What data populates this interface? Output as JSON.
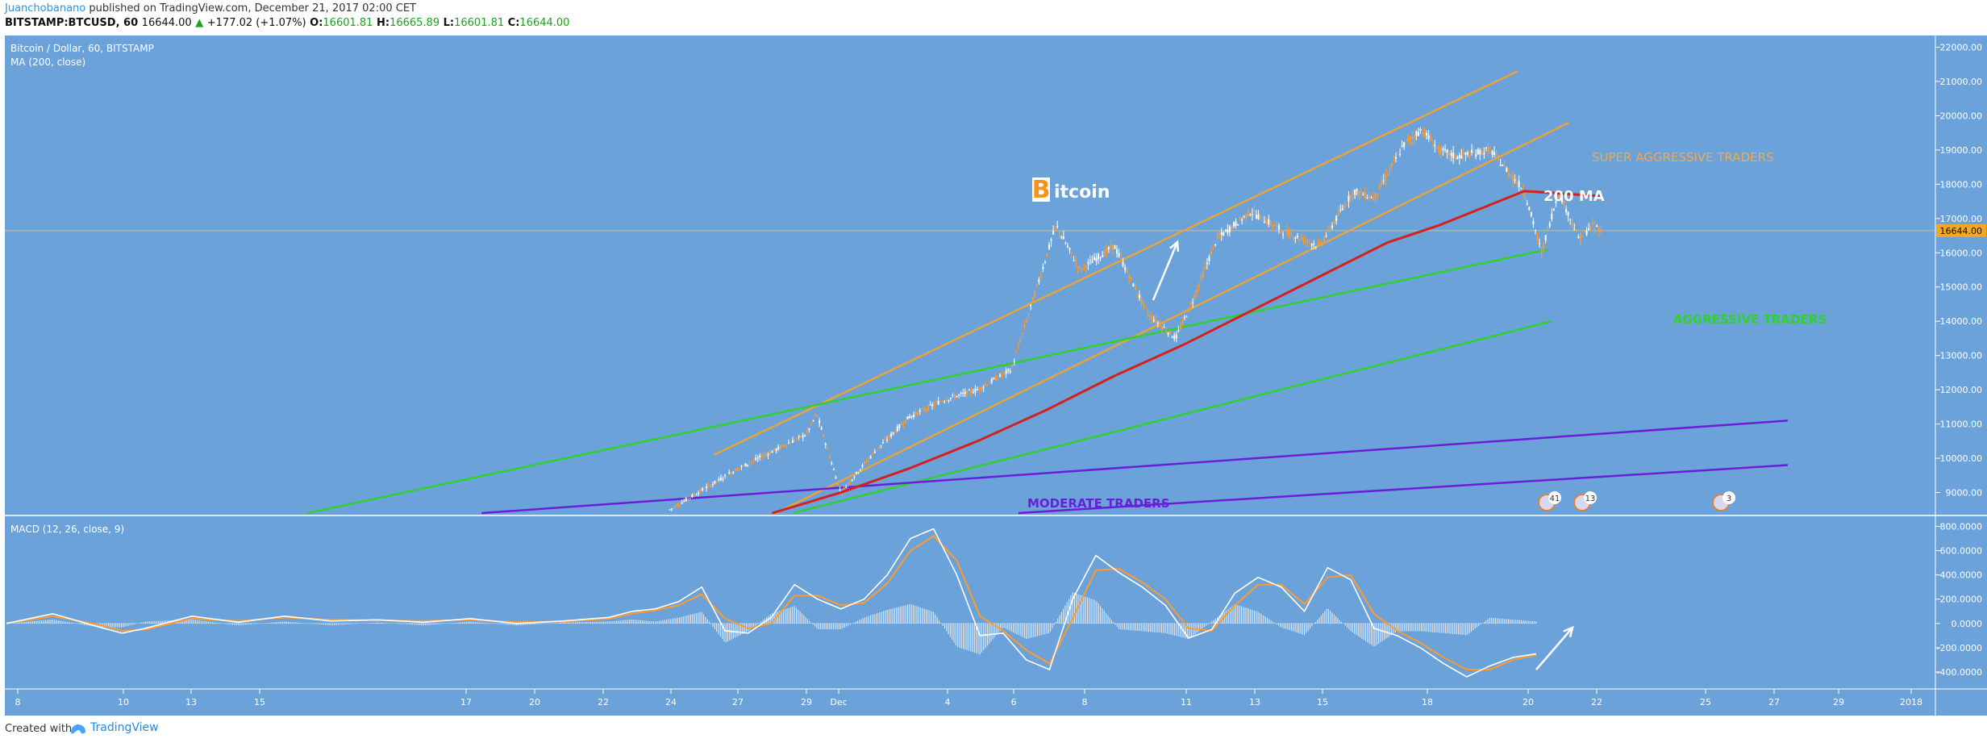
{
  "header": {
    "author": "Juanchobanano",
    "published_on": "published on TradingView.com, December 21, 2017 02:00 CET",
    "symbol": "BITSTAMP:BTCUSD, 60",
    "last": "16644.00",
    "change": "+177.02 (+1.07%)",
    "o_label": "O:",
    "o": "16601.81",
    "h_label": "H:",
    "h": "16665.89",
    "l_label": "L:",
    "l": "16601.81",
    "c_label": "C:",
    "c": "16644.00"
  },
  "footer": {
    "created_with": "Created with",
    "brand": "TradingView"
  },
  "colors": {
    "background": "#6ba2da",
    "candle_up": "#ffffff",
    "candle_down": "#ff9a2e",
    "ma": "#d62020",
    "channel": "#e8a33a",
    "support": "#2ed12e",
    "moderate": "#6a1ed8",
    "macd_line": "#ffffff",
    "signal_line": "#ff9a2e"
  },
  "chart_data": [
    {
      "type": "line",
      "title": "Bitcoin / Dollar, 60, BITSTAMP",
      "subtitle": "MA (200, close)",
      "x_tick_labels": [
        "8",
        "10",
        "13",
        "15",
        "17",
        "20",
        "22",
        "24",
        "27",
        "29",
        "Dec",
        "4",
        "6",
        "8",
        "11",
        "13",
        "15",
        "18",
        "20",
        "22",
        "25",
        "27",
        "29",
        "2018"
      ],
      "y_tick_labels": [
        "9000.00",
        "10000.00",
        "11000.00",
        "12000.00",
        "13000.00",
        "14000.00",
        "15000.00",
        "16000.00",
        "17000.00",
        "18000.00",
        "19000.00",
        "20000.00",
        "21000.00",
        "22000.00"
      ],
      "ylim": [
        8400,
        22200
      ],
      "last_price_label": "16644.00",
      "series": [
        {
          "name": "BTCUSD",
          "kind": "candles",
          "keypoints": [
            [
              26,
              8500
            ],
            [
              28,
              9700
            ],
            [
              30,
              10700
            ],
            [
              30.3,
              11300
            ],
            [
              31,
              9000
            ],
            [
              32,
              10200
            ],
            [
              33,
              11200
            ],
            [
              34,
              11700
            ],
            [
              35,
              12000
            ],
            [
              36,
              12600
            ],
            [
              37.3,
              16800
            ],
            [
              38,
              15500
            ],
            [
              39,
              16200
            ],
            [
              40,
              14200
            ],
            [
              40.8,
              13500
            ],
            [
              41.3,
              14600
            ],
            [
              42,
              16400
            ],
            [
              43,
              17200
            ],
            [
              44,
              16600
            ],
            [
              45,
              16200
            ],
            [
              46,
              17800
            ],
            [
              46.6,
              17600
            ],
            [
              47.5,
              19200
            ],
            [
              48,
              19600
            ],
            [
              48.5,
              19000
            ],
            [
              49,
              18800
            ],
            [
              50,
              19000
            ],
            [
              51,
              17800
            ],
            [
              51.5,
              16000
            ],
            [
              52,
              17800
            ],
            [
              52.6,
              16400
            ],
            [
              53,
              16800
            ],
            [
              53.3,
              16644
            ]
          ]
        },
        {
          "name": "MA (200, close)",
          "kind": "line",
          "values": [
            [
              29,
              8400
            ],
            [
              31,
              9000
            ],
            [
              33,
              9700
            ],
            [
              35,
              10500
            ],
            [
              37,
              11400
            ],
            [
              39,
              12400
            ],
            [
              41,
              13300
            ],
            [
              43,
              14300
            ],
            [
              45,
              15300
            ],
            [
              47,
              16300
            ],
            [
              48.5,
              16800
            ],
            [
              50,
              17400
            ],
            [
              51,
              17800
            ],
            [
              52.5,
              17700
            ],
            [
              53.3,
              17650
            ]
          ]
        }
      ],
      "annotations": [
        {
          "text": "B",
          "style": "logo"
        },
        {
          "text": "itcoin"
        },
        {
          "text": "200 MA"
        },
        {
          "text": "SUPER AGGRESSIVE TRADERS"
        },
        {
          "text": "AGGRESSIVE TRADERS"
        },
        {
          "text": "MODERATE TRADERS"
        }
      ],
      "event_badges": [
        "41",
        "13",
        "3"
      ]
    },
    {
      "type": "line",
      "title": "MACD (12, 26, close, 9)",
      "y_tick_labels": [
        "800.0000",
        "600.0000",
        "400.0000",
        "200.0000",
        "0.0000",
        "-200.0000",
        "-400.0000"
      ],
      "ylim": [
        -500,
        850
      ],
      "series": [
        {
          "name": "MACD",
          "values": [
            [
              0,
              0
            ],
            [
              2,
              80
            ],
            [
              4,
              -30
            ],
            [
              5,
              -80
            ],
            [
              6,
              -40
            ],
            [
              8,
              60
            ],
            [
              10,
              10
            ],
            [
              12,
              60
            ],
            [
              14,
              20
            ],
            [
              16,
              30
            ],
            [
              18,
              10
            ],
            [
              20,
              40
            ],
            [
              22,
              0
            ],
            [
              24,
              20
            ],
            [
              26,
              50
            ],
            [
              27,
              100
            ],
            [
              28,
              120
            ],
            [
              29,
              180
            ],
            [
              30,
              300
            ],
            [
              31,
              -60
            ],
            [
              32,
              -80
            ],
            [
              33,
              50
            ],
            [
              34,
              320
            ],
            [
              35,
              200
            ],
            [
              36,
              120
            ],
            [
              37,
              200
            ],
            [
              38,
              400
            ],
            [
              39,
              700
            ],
            [
              40,
              780
            ],
            [
              41,
              400
            ],
            [
              42,
              -100
            ],
            [
              43,
              -80
            ],
            [
              44,
              -300
            ],
            [
              45,
              -380
            ],
            [
              46,
              200
            ],
            [
              47,
              560
            ],
            [
              48,
              420
            ],
            [
              49,
              300
            ],
            [
              50,
              150
            ],
            [
              51,
              -120
            ],
            [
              52,
              -50
            ],
            [
              53,
              250
            ],
            [
              54,
              380
            ],
            [
              55,
              300
            ],
            [
              56,
              100
            ],
            [
              57,
              460
            ],
            [
              58,
              360
            ],
            [
              59,
              -40
            ],
            [
              60,
              -100
            ],
            [
              61,
              -200
            ],
            [
              62,
              -330
            ],
            [
              63,
              -440
            ],
            [
              64,
              -350
            ],
            [
              65,
              -280
            ],
            [
              66,
              -250
            ]
          ]
        },
        {
          "name": "Signal",
          "values": [
            [
              0,
              0
            ],
            [
              2,
              60
            ],
            [
              4,
              -10
            ],
            [
              5,
              -60
            ],
            [
              6,
              -50
            ],
            [
              8,
              40
            ],
            [
              10,
              20
            ],
            [
              12,
              50
            ],
            [
              14,
              30
            ],
            [
              16,
              25
            ],
            [
              18,
              20
            ],
            [
              20,
              30
            ],
            [
              22,
              10
            ],
            [
              24,
              15
            ],
            [
              26,
              40
            ],
            [
              27,
              80
            ],
            [
              28,
              110
            ],
            [
              29,
              150
            ],
            [
              30,
              240
            ],
            [
              31,
              40
            ],
            [
              32,
              -40
            ],
            [
              33,
              0
            ],
            [
              34,
              230
            ],
            [
              35,
              230
            ],
            [
              36,
              150
            ],
            [
              37,
              170
            ],
            [
              38,
              330
            ],
            [
              39,
              600
            ],
            [
              40,
              720
            ],
            [
              41,
              520
            ],
            [
              42,
              60
            ],
            [
              43,
              -60
            ],
            [
              44,
              -220
            ],
            [
              45,
              -330
            ],
            [
              46,
              40
            ],
            [
              47,
              440
            ],
            [
              48,
              450
            ],
            [
              49,
              340
            ],
            [
              50,
              200
            ],
            [
              51,
              -40
            ],
            [
              52,
              -60
            ],
            [
              53,
              150
            ],
            [
              54,
              320
            ],
            [
              55,
              320
            ],
            [
              56,
              160
            ],
            [
              57,
              380
            ],
            [
              58,
              400
            ],
            [
              59,
              80
            ],
            [
              60,
              -60
            ],
            [
              61,
              -160
            ],
            [
              62,
              -280
            ],
            [
              63,
              -380
            ],
            [
              64,
              -380
            ],
            [
              65,
              -300
            ],
            [
              66,
              -260
            ]
          ]
        }
      ]
    }
  ]
}
